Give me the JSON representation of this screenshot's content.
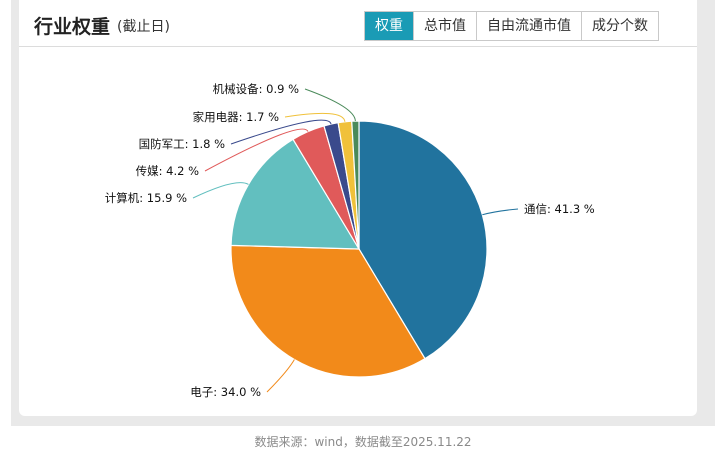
{
  "header": {
    "title": "行业权重",
    "subtitle": "(截止日)",
    "tabs": [
      {
        "label": "权重",
        "active": true
      },
      {
        "label": "总市值",
        "active": false
      },
      {
        "label": "自由流通市值",
        "active": false
      },
      {
        "label": "成分个数",
        "active": false
      }
    ]
  },
  "chart_data": {
    "type": "pie",
    "title": "",
    "series": [
      {
        "name": "通信",
        "value": 41.3,
        "color": "#21739e",
        "label": "通信: 41.3 %"
      },
      {
        "name": "电子",
        "value": 34.0,
        "color": "#f28a1a",
        "label": "电子: 34.0 %"
      },
      {
        "name": "计算机",
        "value": 15.9,
        "color": "#62bfbf",
        "label": "计算机: 15.9 %"
      },
      {
        "name": "传媒",
        "value": 4.2,
        "color": "#e05a5a",
        "label": "传媒: 4.2 %"
      },
      {
        "name": "国防军工",
        "value": 1.8,
        "color": "#3a4a8c",
        "label": "国防军工: 1.8 %"
      },
      {
        "name": "家用电器",
        "value": 1.7,
        "color": "#f0c13a",
        "label": "家用电器: 1.7 %"
      },
      {
        "name": "机械设备",
        "value": 0.9,
        "color": "#4a8a5a",
        "label": "机械设备: 0.9 %"
      }
    ]
  },
  "footer": {
    "source": "数据来源：wind，数据截至2025.11.22"
  }
}
